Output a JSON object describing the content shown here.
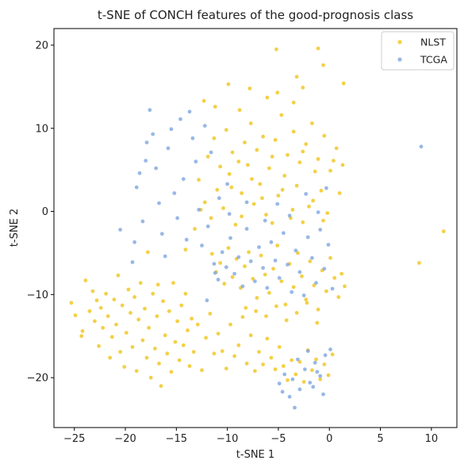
{
  "chart_data": {
    "type": "scatter",
    "title": "t-SNE of CONCH features of the good-prognosis class",
    "xlabel": "t-SNE 1",
    "ylabel": "t-SNE 2",
    "xlim": [
      -27,
      12.5
    ],
    "ylim": [
      -26,
      22
    ],
    "xticks": [
      -25,
      -20,
      -15,
      -10,
      -5,
      0,
      5,
      10
    ],
    "yticks": [
      -20,
      -10,
      0,
      10,
      20
    ],
    "grid": false,
    "legend_position": "top-right",
    "series": [
      {
        "name": "NLST",
        "color": "#f0c419",
        "points": [
          [
            -25.3,
            -11.0
          ],
          [
            -24.9,
            -12.5
          ],
          [
            -24.3,
            -15.0
          ],
          [
            -24.2,
            -14.4
          ],
          [
            -23.9,
            -8.3
          ],
          [
            -23.5,
            -12.0
          ],
          [
            -23.2,
            -9.6
          ],
          [
            -23.0,
            -13.2
          ],
          [
            -22.8,
            -10.7
          ],
          [
            -22.6,
            -16.2
          ],
          [
            -22.4,
            -11.6
          ],
          [
            -22.2,
            -14.0
          ],
          [
            -21.9,
            -9.9
          ],
          [
            -21.7,
            -12.6
          ],
          [
            -21.5,
            -17.6
          ],
          [
            -21.3,
            -15.1
          ],
          [
            -21.1,
            -10.6
          ],
          [
            -20.9,
            -13.6
          ],
          [
            -20.7,
            -7.7
          ],
          [
            -20.5,
            -16.9
          ],
          [
            -20.3,
            -11.3
          ],
          [
            -20.1,
            -18.7
          ],
          [
            -19.9,
            -14.6
          ],
          [
            -19.7,
            -9.4
          ],
          [
            -19.5,
            -12.2
          ],
          [
            -19.3,
            -16.3
          ],
          [
            -19.1,
            -10.3
          ],
          [
            -18.9,
            -19.2
          ],
          [
            -18.7,
            -13.0
          ],
          [
            -18.5,
            -8.6
          ],
          [
            -18.3,
            -15.5
          ],
          [
            -18.1,
            -11.7
          ],
          [
            -17.9,
            -17.6
          ],
          [
            -17.7,
            -14.0
          ],
          [
            -17.5,
            -20.0
          ],
          [
            -17.3,
            -9.9
          ],
          [
            -17.1,
            -16.5
          ],
          [
            -16.9,
            -12.6
          ],
          [
            -16.7,
            -18.3
          ],
          [
            -16.5,
            -21.0
          ],
          [
            -16.3,
            -10.8
          ],
          [
            -16.1,
            -14.9
          ],
          [
            -15.9,
            -17.1
          ],
          [
            -15.7,
            -12.0
          ],
          [
            -15.5,
            -19.3
          ],
          [
            -15.3,
            -8.6
          ],
          [
            -15.1,
            -15.7
          ],
          [
            -14.9,
            -13.2
          ],
          [
            -14.7,
            -17.9
          ],
          [
            -14.5,
            -11.3
          ],
          [
            -14.3,
            -16.1
          ],
          [
            -14.1,
            -9.9
          ],
          [
            -13.9,
            -14.3
          ],
          [
            -13.7,
            -18.6
          ],
          [
            -13.5,
            -12.9
          ],
          [
            -13.3,
            -16.9
          ],
          [
            -12.9,
            -13.6
          ],
          [
            -12.5,
            -19.1
          ],
          [
            -12.1,
            -15.2
          ],
          [
            -11.7,
            -12.3
          ],
          [
            -11.3,
            -17.1
          ],
          [
            -10.9,
            -14.7
          ],
          [
            -10.5,
            -16.8
          ],
          [
            -10.1,
            -18.9
          ],
          [
            -9.7,
            -13.6
          ],
          [
            -9.3,
            -17.4
          ],
          [
            -8.9,
            -16.1
          ],
          [
            -8.5,
            -12.7
          ],
          [
            -8.1,
            -18.3
          ],
          [
            -7.7,
            -14.9
          ],
          [
            -7.3,
            -19.2
          ],
          [
            -6.9,
            -16.9
          ],
          [
            -6.5,
            -18.4
          ],
          [
            -6.1,
            -15.3
          ],
          [
            -5.7,
            -17.6
          ],
          [
            -5.3,
            -19.0
          ],
          [
            -4.9,
            -16.3
          ],
          [
            -4.5,
            -18.6
          ],
          [
            -4.1,
            -20.3
          ],
          [
            -3.7,
            -17.9
          ],
          [
            -3.3,
            -19.6
          ],
          [
            -2.9,
            -18.1
          ],
          [
            -2.5,
            -20.5
          ],
          [
            -2.1,
            -16.7
          ],
          [
            -1.7,
            -19.1
          ],
          [
            -1.3,
            -17.8
          ],
          [
            -0.9,
            -20.2
          ],
          [
            -0.5,
            -18.4
          ],
          [
            -0.1,
            -19.7
          ],
          [
            0.3,
            -17.2
          ],
          [
            -11.5,
            -5.1
          ],
          [
            -11.1,
            -7.3
          ],
          [
            -10.7,
            -6.2
          ],
          [
            -10.3,
            -8.7
          ],
          [
            -9.9,
            -4.4
          ],
          [
            -9.5,
            -7.9
          ],
          [
            -9.1,
            -5.7
          ],
          [
            -8.7,
            -9.2
          ],
          [
            -8.3,
            -6.6
          ],
          [
            -7.9,
            -4.9
          ],
          [
            -7.5,
            -8.1
          ],
          [
            -7.1,
            -10.4
          ],
          [
            -6.7,
            -5.3
          ],
          [
            -6.3,
            -7.6
          ],
          [
            -5.9,
            -9.8
          ],
          [
            -5.5,
            -6.9
          ],
          [
            -5.1,
            -4.1
          ],
          [
            -4.7,
            -8.4
          ],
          [
            -4.3,
            -11.2
          ],
          [
            -3.9,
            -6.3
          ],
          [
            -3.5,
            -9.1
          ],
          [
            -3.1,
            -5.0
          ],
          [
            -2.7,
            -7.8
          ],
          [
            -2.3,
            -10.6
          ],
          [
            -1.9,
            -6.0
          ],
          [
            -1.5,
            -8.9
          ],
          [
            -1.1,
            -11.8
          ],
          [
            -0.7,
            -7.1
          ],
          [
            -0.3,
            -9.6
          ],
          [
            0.1,
            -5.6
          ],
          [
            0.5,
            -8.0
          ],
          [
            0.9,
            -10.3
          ],
          [
            -6.2,
            -12.6
          ],
          [
            -5.2,
            -11.4
          ],
          [
            -4.2,
            -13.1
          ],
          [
            -3.2,
            -12.2
          ],
          [
            -2.2,
            -11.0
          ],
          [
            -1.2,
            -13.4
          ],
          [
            -7.2,
            -12.0
          ],
          [
            -8.2,
            -11.6
          ],
          [
            -12.8,
            3.8
          ],
          [
            -12.2,
            1.1
          ],
          [
            -11.6,
            -0.8
          ],
          [
            -11.0,
            2.6
          ],
          [
            -10.4,
            0.4
          ],
          [
            -9.8,
            4.5
          ],
          [
            -9.2,
            -1.6
          ],
          [
            -8.6,
            2.2
          ],
          [
            -8.0,
            5.6
          ],
          [
            -7.4,
            0.9
          ],
          [
            -6.8,
            3.3
          ],
          [
            -6.2,
            -0.4
          ],
          [
            -5.6,
            6.6
          ],
          [
            -5.0,
            1.9
          ],
          [
            -4.4,
            4.3
          ],
          [
            -3.8,
            -0.8
          ],
          [
            -3.2,
            3.1
          ],
          [
            -2.6,
            7.2
          ],
          [
            -2.0,
            0.6
          ],
          [
            -1.4,
            4.8
          ],
          [
            -0.8,
            2.5
          ],
          [
            -0.2,
            -0.2
          ],
          [
            0.4,
            6.1
          ],
          [
            1.0,
            2.2
          ],
          [
            -11.9,
            6.6
          ],
          [
            -11.3,
            8.8
          ],
          [
            -10.7,
            5.4
          ],
          [
            -10.1,
            9.8
          ],
          [
            -9.5,
            7.1
          ],
          [
            -8.9,
            6.0
          ],
          [
            -8.3,
            8.3
          ],
          [
            -7.7,
            10.6
          ],
          [
            -7.1,
            7.4
          ],
          [
            -6.5,
            9.0
          ],
          [
            -5.9,
            5.2
          ],
          [
            -5.3,
            8.6
          ],
          [
            -4.7,
            11.6
          ],
          [
            -4.1,
            6.8
          ],
          [
            -3.5,
            9.6
          ],
          [
            -2.9,
            5.9
          ],
          [
            -2.3,
            8.1
          ],
          [
            -1.7,
            10.6
          ],
          [
            -1.1,
            6.3
          ],
          [
            -0.5,
            9.1
          ],
          [
            0.1,
            4.9
          ],
          [
            0.7,
            7.6
          ],
          [
            1.3,
            5.6
          ],
          [
            -9.6,
            2.9
          ],
          [
            -8.6,
            -0.6
          ],
          [
            -7.6,
            3.9
          ],
          [
            -6.6,
            1.6
          ],
          [
            -5.6,
            -1.4
          ],
          [
            -4.6,
            2.6
          ],
          [
            -3.6,
            0.2
          ],
          [
            -2.6,
            -1.3
          ],
          [
            -1.6,
            1.3
          ],
          [
            -0.6,
            -1.1
          ],
          [
            -13.2,
            -2.1
          ],
          [
            -12.6,
            0.2
          ],
          [
            -14.1,
            -4.6
          ],
          [
            -5.2,
            19.5
          ],
          [
            -1.1,
            19.6
          ],
          [
            -0.6,
            17.6
          ],
          [
            1.4,
            15.4
          ],
          [
            -9.9,
            15.3
          ],
          [
            -7.8,
            14.8
          ],
          [
            -5.1,
            14.3
          ],
          [
            -3.2,
            16.2
          ],
          [
            -2.6,
            14.9
          ],
          [
            -3.5,
            13.1
          ],
          [
            -6.1,
            13.7
          ],
          [
            -8.8,
            12.2
          ],
          [
            -11.2,
            12.6
          ],
          [
            -12.3,
            13.3
          ],
          [
            8.8,
            -6.2
          ],
          [
            11.2,
            -2.4
          ],
          [
            1.5,
            -9.0
          ],
          [
            1.2,
            -7.5
          ],
          [
            -17.8,
            -4.9
          ],
          [
            -16.8,
            -8.8
          ]
        ]
      },
      {
        "name": "TCGA",
        "color": "#7ea6e0",
        "points": [
          [
            -20.5,
            -2.2
          ],
          [
            -19.3,
            -6.1
          ],
          [
            -19.1,
            -3.7
          ],
          [
            -18.9,
            2.9
          ],
          [
            -18.6,
            4.6
          ],
          [
            -18.3,
            -1.2
          ],
          [
            -18.0,
            6.1
          ],
          [
            -17.9,
            8.3
          ],
          [
            -17.6,
            12.2
          ],
          [
            -17.3,
            9.3
          ],
          [
            -17.0,
            5.2
          ],
          [
            -16.7,
            1.0
          ],
          [
            -16.4,
            -2.7
          ],
          [
            -16.1,
            -5.4
          ],
          [
            -15.8,
            7.6
          ],
          [
            -15.5,
            9.9
          ],
          [
            -15.2,
            2.2
          ],
          [
            -14.9,
            -0.8
          ],
          [
            -14.6,
            11.1
          ],
          [
            -14.3,
            3.9
          ],
          [
            -14.0,
            -3.4
          ],
          [
            -13.7,
            12.0
          ],
          [
            -13.4,
            8.8
          ],
          [
            -13.1,
            6.0
          ],
          [
            -12.8,
            0.2
          ],
          [
            -12.5,
            -4.1
          ],
          [
            -12.2,
            10.3
          ],
          [
            -11.9,
            -1.8
          ],
          [
            -11.6,
            7.1
          ],
          [
            -11.3,
            -6.3
          ],
          [
            -10.9,
            -8.2
          ],
          [
            -10.5,
            -4.9
          ],
          [
            -10.1,
            -6.7
          ],
          [
            -9.7,
            -3.2
          ],
          [
            -9.3,
            -7.5
          ],
          [
            -8.9,
            -5.5
          ],
          [
            -8.5,
            -9.0
          ],
          [
            -8.1,
            -2.1
          ],
          [
            -7.7,
            -6.0
          ],
          [
            -7.3,
            -8.4
          ],
          [
            -6.9,
            -4.3
          ],
          [
            -6.5,
            -6.8
          ],
          [
            -6.1,
            -9.2
          ],
          [
            -5.7,
            -3.7
          ],
          [
            -5.3,
            -5.9
          ],
          [
            -4.9,
            -8.0
          ],
          [
            -4.5,
            -2.6
          ],
          [
            -4.1,
            -6.4
          ],
          [
            -3.7,
            -9.7
          ],
          [
            -3.3,
            -4.7
          ],
          [
            -2.9,
            -7.3
          ],
          [
            -2.5,
            -10.1
          ],
          [
            -2.1,
            -3.1
          ],
          [
            -1.7,
            -5.6
          ],
          [
            -1.3,
            -8.6
          ],
          [
            -0.9,
            -2.2
          ],
          [
            -0.5,
            -6.9
          ],
          [
            -0.1,
            -4.0
          ],
          [
            0.3,
            -9.3
          ],
          [
            -6.3,
            -1.1
          ],
          [
            -5.1,
            0.9
          ],
          [
            -3.9,
            -0.5
          ],
          [
            -2.3,
            2.1
          ],
          [
            -1.1,
            -0.1
          ],
          [
            -0.3,
            2.8
          ],
          [
            -8.1,
            1.1
          ],
          [
            -9.8,
            -0.3
          ],
          [
            -10.8,
            1.6
          ],
          [
            -4.9,
            -20.7
          ],
          [
            -4.4,
            -19.6
          ],
          [
            -3.9,
            -22.3
          ],
          [
            -3.4,
            -23.6
          ],
          [
            -2.9,
            -21.4
          ],
          [
            -2.4,
            -19.0
          ],
          [
            -1.9,
            -20.6
          ],
          [
            -1.4,
            -18.2
          ],
          [
            -0.9,
            -19.8
          ],
          [
            -0.4,
            -17.3
          ],
          [
            0.1,
            -16.6
          ],
          [
            -3.1,
            -17.8
          ],
          [
            -2.1,
            -16.8
          ],
          [
            -1.6,
            -21.1
          ],
          [
            -4.6,
            -21.7
          ],
          [
            -3.6,
            -20.2
          ],
          [
            -0.6,
            -22.0
          ],
          [
            -1.2,
            -19.3
          ],
          [
            9.0,
            7.8
          ],
          [
            -10.0,
            3.3
          ],
          [
            -12.0,
            -10.7
          ],
          [
            -11.2,
            -7.4
          ]
        ]
      }
    ]
  }
}
